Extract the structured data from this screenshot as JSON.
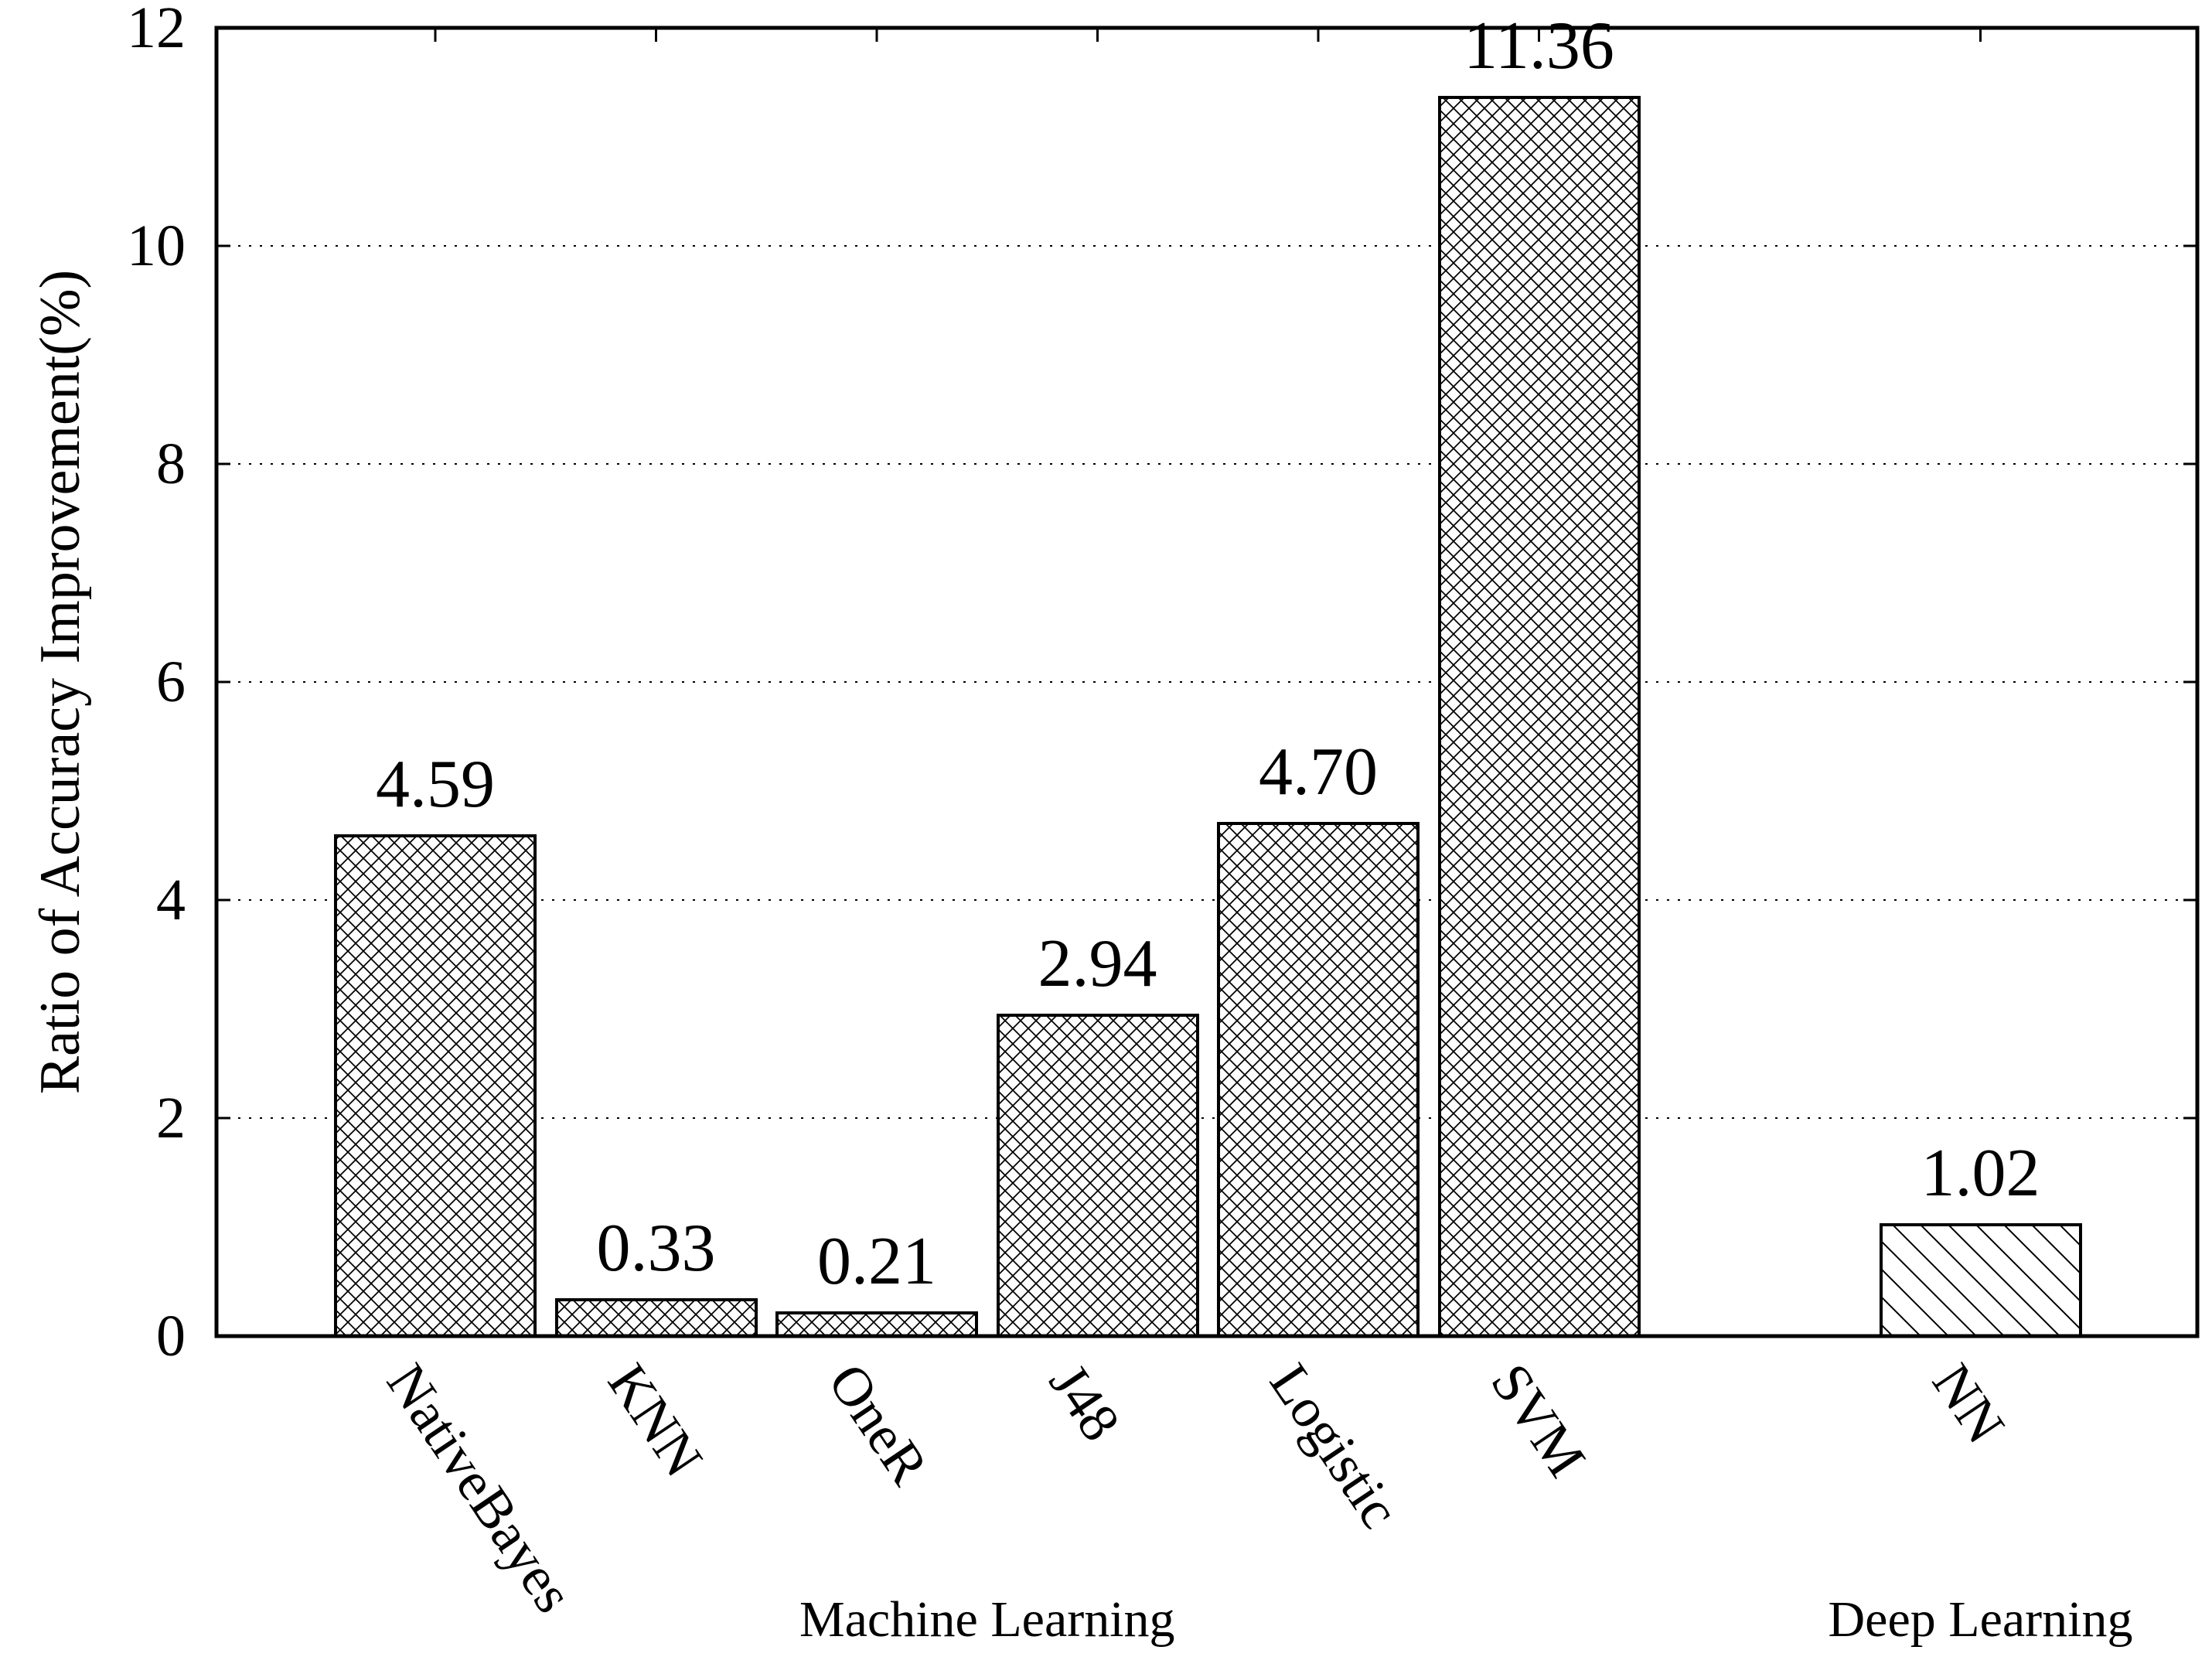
{
  "chart_data": {
    "type": "bar",
    "title": "",
    "xlabel": "",
    "ylabel": "Ratio of Accuracy Improvement(%)",
    "ylim": [
      0,
      12
    ],
    "yticks": [
      0,
      2,
      4,
      6,
      8,
      10,
      12
    ],
    "ytick_labels": [
      "0",
      "2",
      "4",
      "6",
      "8",
      "10",
      "12"
    ],
    "grid": "horizontal dotted lines at 2,4,6,8,10",
    "legend": "none",
    "categories": [
      "NativeBayes",
      "KNN",
      "OneR",
      "J48",
      "Logistic",
      "SVM",
      "NN"
    ],
    "values": [
      4.59,
      0.33,
      0.21,
      2.94,
      4.7,
      11.36,
      1.02
    ],
    "bars": [
      {
        "label": "NativeBayes",
        "value": 4.59,
        "value_label": "4.59",
        "hatch": "crosshatch",
        "group": "Machine Learning",
        "slot": 1
      },
      {
        "label": "KNN",
        "value": 0.33,
        "value_label": "0.33",
        "hatch": "crosshatch",
        "group": "Machine Learning",
        "slot": 2
      },
      {
        "label": "OneR",
        "value": 0.21,
        "value_label": "0.21",
        "hatch": "crosshatch",
        "group": "Machine Learning",
        "slot": 3
      },
      {
        "label": "J48",
        "value": 2.94,
        "value_label": "2.94",
        "hatch": "crosshatch",
        "group": "Machine Learning",
        "slot": 4
      },
      {
        "label": "Logistic",
        "value": 4.7,
        "value_label": "4.70",
        "hatch": "crosshatch",
        "group": "Machine Learning",
        "slot": 5
      },
      {
        "label": "SVM",
        "value": 11.36,
        "value_label": "11.36",
        "hatch": "crosshatch",
        "group": "Machine Learning",
        "slot": 6
      },
      {
        "label": "NN",
        "value": 1.02,
        "value_label": "1.02",
        "hatch": "diagonal",
        "group": "Deep Learning",
        "slot": 8
      }
    ],
    "group_labels": [
      {
        "label": "Machine Learning",
        "center_slot": 3.5
      },
      {
        "label": "Deep Learning",
        "center_slot": 8
      }
    ],
    "colors": {
      "background": "#ffffff",
      "bar_fill": "#ffffff",
      "hatch_lines": "#000000",
      "axis": "#000000",
      "text": "#000000"
    }
  }
}
